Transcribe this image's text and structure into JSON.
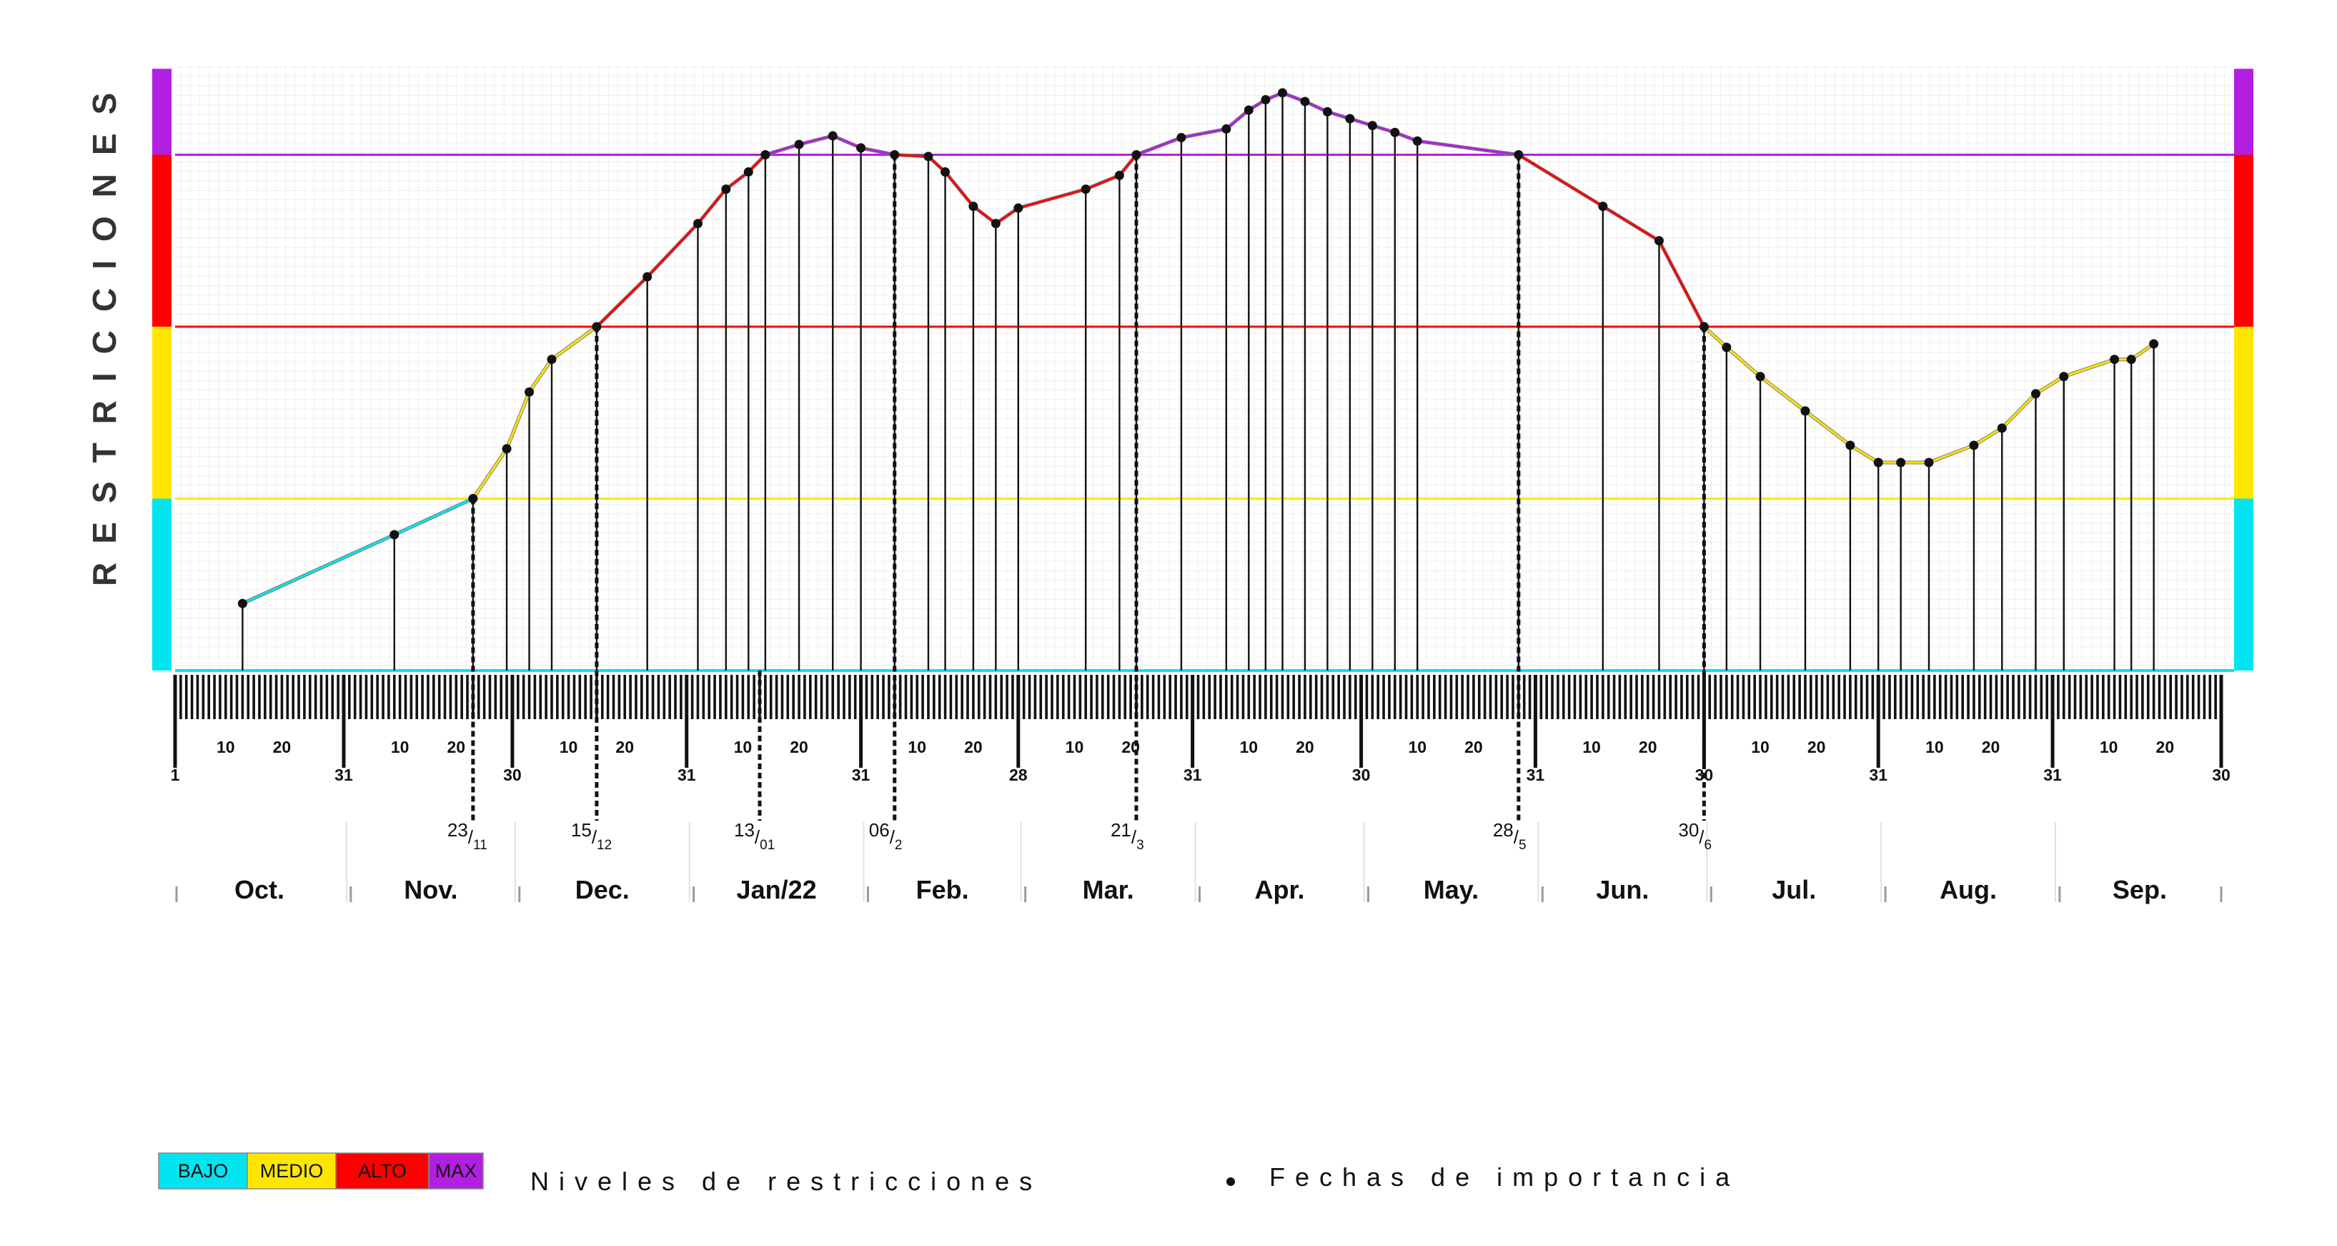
{
  "chart_data": {
    "type": "line",
    "title": "",
    "ylabel": "RESTRICCIONES",
    "xlabel": "",
    "x_range": [
      "2021-10-01",
      "2022-09-30"
    ],
    "ylim": [
      0,
      3.5
    ],
    "grid": true,
    "levels": [
      {
        "name": "BAJO",
        "from": 0,
        "to": 1,
        "color": "#00e5f0"
      },
      {
        "name": "MEDIO",
        "from": 1,
        "to": 2,
        "color": "#ffe600"
      },
      {
        "name": "ALTO",
        "from": 2,
        "to": 3,
        "color": "#ff0000"
      },
      {
        "name": "MAX",
        "from": 3,
        "to": 3.5,
        "color": "#b21fe0"
      }
    ],
    "months": [
      "Oct.",
      "Nov.",
      "Dec.",
      "Jan/22",
      "Feb.",
      "Mar.",
      "Apr.",
      "May.",
      "Jun.",
      "Jul.",
      "Aug.",
      "Sep."
    ],
    "series": [
      {
        "x": [
          "2021-10-13",
          "2021-11-09",
          "2021-11-23",
          "2021-11-29",
          "2021-12-03",
          "2021-12-07",
          "2021-12-15",
          "2021-12-24",
          "2022-01-02",
          "2022-01-07",
          "2022-01-11",
          "2022-01-14",
          "2022-01-20",
          "2022-01-26",
          "2022-01-31",
          "2022-02-06",
          "2022-02-12",
          "2022-02-15",
          "2022-02-20",
          "2022-02-24",
          "2022-02-28",
          "2022-03-12",
          "2022-03-18",
          "2022-03-21",
          "2022-03-29",
          "2022-04-06",
          "2022-04-10",
          "2022-04-13",
          "2022-04-16",
          "2022-04-20",
          "2022-04-24",
          "2022-04-28",
          "2022-05-02",
          "2022-05-06",
          "2022-05-10",
          "2022-05-28",
          "2022-06-12",
          "2022-06-22",
          "2022-06-30",
          "2022-07-04",
          "2022-07-10",
          "2022-07-18",
          "2022-07-26",
          "2022-07-31",
          "2022-08-04",
          "2022-08-09",
          "2022-08-17",
          "2022-08-22",
          "2022-08-28",
          "2022-09-02",
          "2022-09-11",
          "2022-09-14",
          "2022-09-18"
        ],
        "y": [
          0.39,
          0.79,
          1.0,
          1.29,
          1.62,
          1.81,
          2.0,
          2.29,
          2.6,
          2.8,
          2.9,
          3.0,
          3.06,
          3.11,
          3.04,
          3.0,
          2.99,
          2.9,
          2.7,
          2.6,
          2.69,
          2.8,
          2.88,
          3.0,
          3.1,
          3.15,
          3.26,
          3.32,
          3.36,
          3.31,
          3.25,
          3.21,
          3.17,
          3.13,
          3.08,
          3.0,
          2.7,
          2.5,
          2.0,
          1.88,
          1.71,
          1.51,
          1.31,
          1.21,
          1.21,
          1.21,
          1.31,
          1.41,
          1.61,
          1.71,
          1.81,
          1.81,
          1.9
        ]
      }
    ],
    "important_dates": [
      {
        "x": "2021-11-23",
        "day": "23",
        "month": "11"
      },
      {
        "x": "2021-12-15",
        "day": "15",
        "month": "12"
      },
      {
        "x": "2022-01-13",
        "day": "13",
        "month": "01"
      },
      {
        "x": "2022-02-06",
        "day": "06",
        "month": "2"
      },
      {
        "x": "2022-03-21",
        "day": "21",
        "month": "3"
      },
      {
        "x": "2022-05-28",
        "day": "28",
        "month": "5"
      },
      {
        "x": "2022-06-30",
        "day": "30",
        "month": "6"
      }
    ]
  },
  "legend": {
    "items": [
      "BAJO",
      "MEDIO",
      "ALTO",
      "MAX"
    ],
    "levels_text": "Niveles de restricciones",
    "dates_text": "Fechas de importancia"
  }
}
